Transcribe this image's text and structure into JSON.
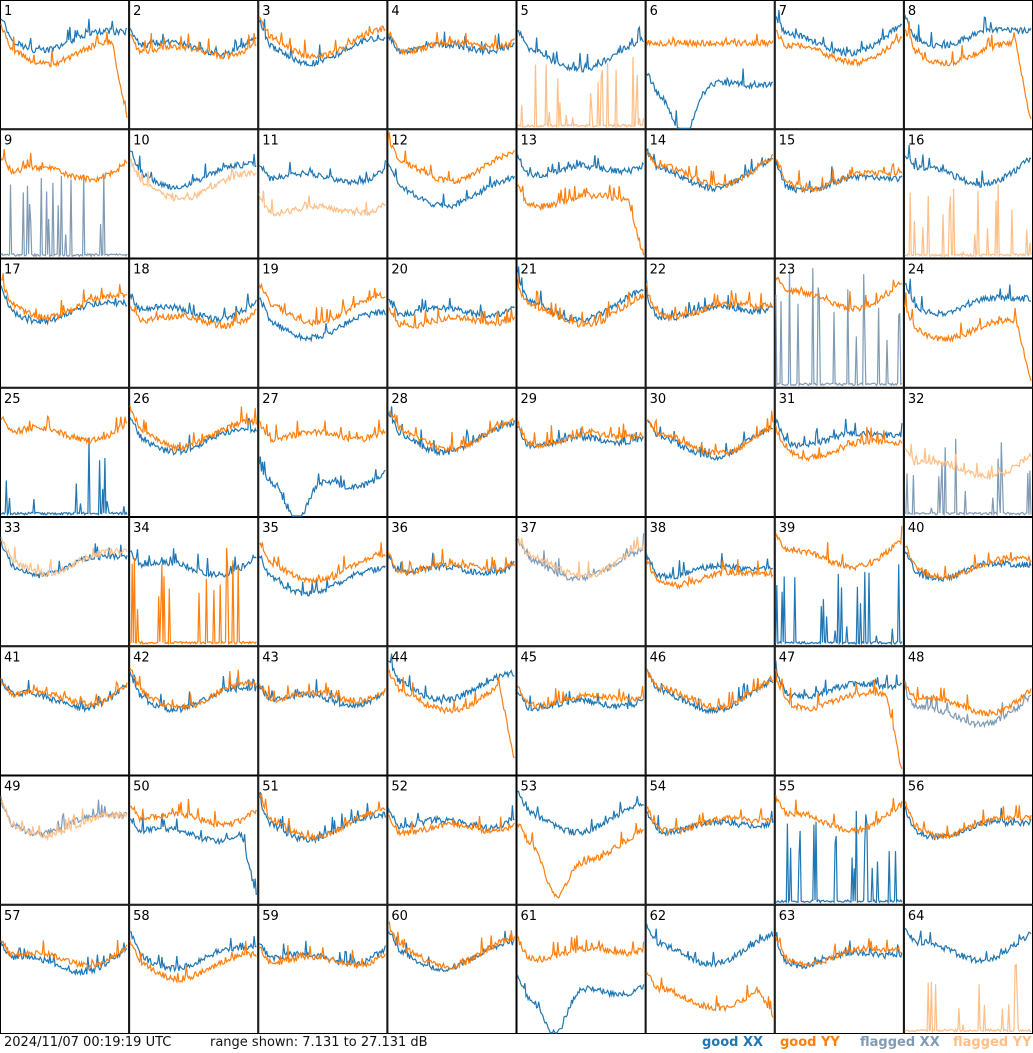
{
  "footer": {
    "timestamp": "2024/11/07 00:19:19 UTC",
    "range_text": "range shown: 7.131 to 27.131 dB"
  },
  "legend": {
    "good_xx": "good XX",
    "good_yy": "good YY",
    "flagged_xx": "flagged XX",
    "flagged_yy": "flagged YY"
  },
  "colors": {
    "good_xx": "#1f77b4",
    "good_yy": "#ff7f0e",
    "flagged_xx": "#7f9bb5",
    "flagged_yy": "#ffbf87"
  },
  "chart_data": {
    "type": "line",
    "layout": "8x8 grid of small-multiple spectra",
    "ylim_db": [
      7.131,
      27.131
    ],
    "legend_placement": "bottom-right",
    "series_names": [
      "good XX",
      "good YY",
      "flagged XX",
      "flagged YY"
    ],
    "panels": [
      {
        "label": "1",
        "xx": {
          "kind": "normal",
          "level": 0.72,
          "status": "good"
        },
        "yy": {
          "kind": "falloff",
          "level": 0.62,
          "status": "good"
        }
      },
      {
        "label": "2",
        "xx": {
          "kind": "normal",
          "level": 0.67,
          "status": "good"
        },
        "yy": {
          "kind": "normal",
          "level": 0.64,
          "status": "good"
        }
      },
      {
        "label": "3",
        "xx": {
          "kind": "normal",
          "level": 0.63,
          "status": "good"
        },
        "yy": {
          "kind": "normal",
          "level": 0.68,
          "status": "good"
        }
      },
      {
        "label": "4",
        "xx": {
          "kind": "normal",
          "level": 0.66,
          "status": "good"
        },
        "yy": {
          "kind": "normal",
          "level": 0.68,
          "status": "good"
        }
      },
      {
        "label": "5",
        "xx": {
          "kind": "normal",
          "level": 0.58,
          "status": "good"
        },
        "yy": {
          "kind": "spikes",
          "level": 0.05,
          "status": "flagged"
        }
      },
      {
        "label": "6",
        "xx": {
          "kind": "dip",
          "level": 0.35,
          "status": "good"
        },
        "yy": {
          "kind": "flat",
          "level": 0.68,
          "status": "good"
        }
      },
      {
        "label": "7",
        "xx": {
          "kind": "normal",
          "level": 0.7,
          "status": "good"
        },
        "yy": {
          "kind": "normal",
          "level": 0.62,
          "status": "good"
        }
      },
      {
        "label": "8",
        "xx": {
          "kind": "normal",
          "level": 0.75,
          "status": "good"
        },
        "yy": {
          "kind": "falloff",
          "level": 0.62,
          "status": "good"
        }
      },
      {
        "label": "9",
        "xx": {
          "kind": "spikes",
          "level": 0.1,
          "status": "flagged"
        },
        "yy": {
          "kind": "normal",
          "level": 0.7,
          "status": "good"
        }
      },
      {
        "label": "10",
        "xx": {
          "kind": "normal",
          "level": 0.67,
          "status": "good"
        },
        "yy": {
          "kind": "normal",
          "level": 0.58,
          "status": "flagged"
        }
      },
      {
        "label": "11",
        "xx": {
          "kind": "normal",
          "level": 0.66,
          "status": "good"
        },
        "yy": {
          "kind": "normal",
          "level": 0.4,
          "status": "flagged"
        }
      },
      {
        "label": "12",
        "xx": {
          "kind": "normal",
          "level": 0.52,
          "status": "good"
        },
        "yy": {
          "kind": "normal",
          "level": 0.72,
          "status": "good"
        }
      },
      {
        "label": "13",
        "xx": {
          "kind": "normal",
          "level": 0.72,
          "status": "good"
        },
        "yy": {
          "kind": "falloff",
          "level": 0.48,
          "status": "good"
        }
      },
      {
        "label": "14",
        "xx": {
          "kind": "normal",
          "level": 0.66,
          "status": "good"
        },
        "yy": {
          "kind": "normal",
          "level": 0.68,
          "status": "good"
        }
      },
      {
        "label": "15",
        "xx": {
          "kind": "normal",
          "level": 0.62,
          "status": "good"
        },
        "yy": {
          "kind": "normal",
          "level": 0.64,
          "status": "good"
        }
      },
      {
        "label": "16",
        "xx": {
          "kind": "normal",
          "level": 0.68,
          "status": "good"
        },
        "yy": {
          "kind": "spikes",
          "level": 0.04,
          "status": "flagged"
        }
      },
      {
        "label": "17",
        "xx": {
          "kind": "normal",
          "level": 0.62,
          "status": "good"
        },
        "yy": {
          "kind": "normal",
          "level": 0.66,
          "status": "good"
        }
      },
      {
        "label": "18",
        "xx": {
          "kind": "normal",
          "level": 0.62,
          "status": "good"
        },
        "yy": {
          "kind": "normal",
          "level": 0.55,
          "status": "good"
        }
      },
      {
        "label": "19",
        "xx": {
          "kind": "normal",
          "level": 0.5,
          "status": "good"
        },
        "yy": {
          "kind": "normal",
          "level": 0.62,
          "status": "good"
        }
      },
      {
        "label": "20",
        "xx": {
          "kind": "normal",
          "level": 0.62,
          "status": "good"
        },
        "yy": {
          "kind": "normal",
          "level": 0.54,
          "status": "good"
        }
      },
      {
        "label": "21",
        "xx": {
          "kind": "normal",
          "level": 0.64,
          "status": "good"
        },
        "yy": {
          "kind": "normal",
          "level": 0.6,
          "status": "good"
        }
      },
      {
        "label": "22",
        "xx": {
          "kind": "normal",
          "level": 0.62,
          "status": "good"
        },
        "yy": {
          "kind": "normal",
          "level": 0.64,
          "status": "good"
        }
      },
      {
        "label": "23",
        "xx": {
          "kind": "spikes",
          "level": 0.35,
          "status": "flagged"
        },
        "yy": {
          "kind": "normal",
          "level": 0.72,
          "status": "good"
        }
      },
      {
        "label": "24",
        "xx": {
          "kind": "normal",
          "level": 0.68,
          "status": "good"
        },
        "yy": {
          "kind": "falloff",
          "level": 0.48,
          "status": "good"
        }
      },
      {
        "label": "25",
        "xx": {
          "kind": "spikes",
          "level": 0.04,
          "status": "good"
        },
        "yy": {
          "kind": "normal",
          "level": 0.68,
          "status": "good"
        }
      },
      {
        "label": "26",
        "xx": {
          "kind": "normal",
          "level": 0.62,
          "status": "good"
        },
        "yy": {
          "kind": "normal",
          "level": 0.66,
          "status": "good"
        }
      },
      {
        "label": "27",
        "xx": {
          "kind": "dip",
          "level": 0.3,
          "status": "good"
        },
        "yy": {
          "kind": "normal",
          "level": 0.66,
          "status": "good"
        }
      },
      {
        "label": "28",
        "xx": {
          "kind": "normal",
          "level": 0.62,
          "status": "good"
        },
        "yy": {
          "kind": "normal",
          "level": 0.64,
          "status": "good"
        }
      },
      {
        "label": "29",
        "xx": {
          "kind": "normal",
          "level": 0.62,
          "status": "good"
        },
        "yy": {
          "kind": "normal",
          "level": 0.64,
          "status": "good"
        }
      },
      {
        "label": "30",
        "xx": {
          "kind": "normal",
          "level": 0.58,
          "status": "good"
        },
        "yy": {
          "kind": "normal",
          "level": 0.6,
          "status": "good"
        }
      },
      {
        "label": "31",
        "xx": {
          "kind": "normal",
          "level": 0.64,
          "status": "good"
        },
        "yy": {
          "kind": "normal",
          "level": 0.56,
          "status": "good"
        }
      },
      {
        "label": "32",
        "xx": {
          "kind": "spikes",
          "level": 0.03,
          "status": "flagged"
        },
        "yy": {
          "kind": "normal",
          "level": 0.4,
          "status": "flagged"
        }
      },
      {
        "label": "33",
        "xx": {
          "kind": "normal",
          "level": 0.66,
          "status": "good"
        },
        "yy": {
          "kind": "normal",
          "level": 0.68,
          "status": "flagged"
        }
      },
      {
        "label": "34",
        "xx": {
          "kind": "normal",
          "level": 0.64,
          "status": "good"
        },
        "yy": {
          "kind": "spikes",
          "level": 0.2,
          "status": "good"
        }
      },
      {
        "label": "35",
        "xx": {
          "kind": "normal",
          "level": 0.52,
          "status": "good"
        },
        "yy": {
          "kind": "normal",
          "level": 0.62,
          "status": "good"
        }
      },
      {
        "label": "36",
        "xx": {
          "kind": "normal",
          "level": 0.62,
          "status": "good"
        },
        "yy": {
          "kind": "normal",
          "level": 0.64,
          "status": "good"
        }
      },
      {
        "label": "37",
        "xx": {
          "kind": "normal",
          "level": 0.64,
          "status": "flagged"
        },
        "yy": {
          "kind": "normal",
          "level": 0.66,
          "status": "flagged"
        }
      },
      {
        "label": "38",
        "xx": {
          "kind": "normal",
          "level": 0.62,
          "status": "good"
        },
        "yy": {
          "kind": "normal",
          "level": 0.56,
          "status": "good"
        }
      },
      {
        "label": "39",
        "xx": {
          "kind": "spikes",
          "level": 0.06,
          "status": "good"
        },
        "yy": {
          "kind": "normal",
          "level": 0.72,
          "status": "good"
        }
      },
      {
        "label": "40",
        "xx": {
          "kind": "normal",
          "level": 0.62,
          "status": "good"
        },
        "yy": {
          "kind": "normal",
          "level": 0.64,
          "status": "good"
        }
      },
      {
        "label": "41",
        "xx": {
          "kind": "normal",
          "level": 0.62,
          "status": "good"
        },
        "yy": {
          "kind": "normal",
          "level": 0.64,
          "status": "good"
        }
      },
      {
        "label": "42",
        "xx": {
          "kind": "normal",
          "level": 0.62,
          "status": "good"
        },
        "yy": {
          "kind": "normal",
          "level": 0.64,
          "status": "good"
        }
      },
      {
        "label": "43",
        "xx": {
          "kind": "normal",
          "level": 0.62,
          "status": "good"
        },
        "yy": {
          "kind": "normal",
          "level": 0.64,
          "status": "good"
        }
      },
      {
        "label": "44",
        "xx": {
          "kind": "normal",
          "level": 0.7,
          "status": "good"
        },
        "yy": {
          "kind": "falloff",
          "level": 0.62,
          "status": "good"
        }
      },
      {
        "label": "45",
        "xx": {
          "kind": "normal",
          "level": 0.58,
          "status": "good"
        },
        "yy": {
          "kind": "normal",
          "level": 0.62,
          "status": "good"
        }
      },
      {
        "label": "46",
        "xx": {
          "kind": "normal",
          "level": 0.62,
          "status": "good"
        },
        "yy": {
          "kind": "normal",
          "level": 0.64,
          "status": "good"
        }
      },
      {
        "label": "47",
        "xx": {
          "kind": "normal",
          "level": 0.7,
          "status": "good"
        },
        "yy": {
          "kind": "falloff",
          "level": 0.62,
          "status": "good"
        }
      },
      {
        "label": "48",
        "xx": {
          "kind": "normal",
          "level": 0.5,
          "status": "flagged"
        },
        "yy": {
          "kind": "normal",
          "level": 0.58,
          "status": "good"
        }
      },
      {
        "label": "49",
        "xx": {
          "kind": "normal",
          "level": 0.66,
          "status": "flagged"
        },
        "yy": {
          "kind": "normal",
          "level": 0.64,
          "status": "flagged"
        }
      },
      {
        "label": "50",
        "xx": {
          "kind": "falloff",
          "level": 0.58,
          "status": "good"
        },
        "yy": {
          "kind": "normal",
          "level": 0.7,
          "status": "good"
        }
      },
      {
        "label": "51",
        "xx": {
          "kind": "normal",
          "level": 0.62,
          "status": "good"
        },
        "yy": {
          "kind": "normal",
          "level": 0.64,
          "status": "good"
        }
      },
      {
        "label": "52",
        "xx": {
          "kind": "normal",
          "level": 0.66,
          "status": "good"
        },
        "yy": {
          "kind": "normal",
          "level": 0.62,
          "status": "good"
        }
      },
      {
        "label": "53",
        "xx": {
          "kind": "normal",
          "level": 0.68,
          "status": "good"
        },
        "yy": {
          "kind": "dip",
          "level": 0.45,
          "status": "good"
        }
      },
      {
        "label": "54",
        "xx": {
          "kind": "normal",
          "level": 0.64,
          "status": "good"
        },
        "yy": {
          "kind": "normal",
          "level": 0.66,
          "status": "good"
        }
      },
      {
        "label": "55",
        "xx": {
          "kind": "spikes",
          "level": 0.15,
          "status": "good"
        },
        "yy": {
          "kind": "normal",
          "level": 0.68,
          "status": "good"
        }
      },
      {
        "label": "56",
        "xx": {
          "kind": "normal",
          "level": 0.62,
          "status": "good"
        },
        "yy": {
          "kind": "normal",
          "level": 0.64,
          "status": "good"
        }
      },
      {
        "label": "57",
        "xx": {
          "kind": "normal",
          "level": 0.58,
          "status": "good"
        },
        "yy": {
          "kind": "normal",
          "level": 0.62,
          "status": "good"
        }
      },
      {
        "label": "58",
        "xx": {
          "kind": "normal",
          "level": 0.62,
          "status": "good"
        },
        "yy": {
          "kind": "normal",
          "level": 0.54,
          "status": "good"
        }
      },
      {
        "label": "59",
        "xx": {
          "kind": "normal",
          "level": 0.62,
          "status": "good"
        },
        "yy": {
          "kind": "normal",
          "level": 0.6,
          "status": "good"
        }
      },
      {
        "label": "60",
        "xx": {
          "kind": "normal",
          "level": 0.62,
          "status": "good"
        },
        "yy": {
          "kind": "normal",
          "level": 0.64,
          "status": "good"
        }
      },
      {
        "label": "61",
        "xx": {
          "kind": "dip",
          "level": 0.35,
          "status": "good"
        },
        "yy": {
          "kind": "normal",
          "level": 0.66,
          "status": "good"
        }
      },
      {
        "label": "62",
        "xx": {
          "kind": "normal",
          "level": 0.66,
          "status": "good"
        },
        "yy": {
          "kind": "falloff",
          "level": 0.3,
          "status": "good"
        }
      },
      {
        "label": "63",
        "xx": {
          "kind": "normal",
          "level": 0.62,
          "status": "good"
        },
        "yy": {
          "kind": "normal",
          "level": 0.64,
          "status": "good"
        }
      },
      {
        "label": "64",
        "xx": {
          "kind": "normal",
          "level": 0.68,
          "status": "good"
        },
        "yy": {
          "kind": "spikes",
          "level": 0.04,
          "status": "flagged"
        }
      }
    ]
  }
}
